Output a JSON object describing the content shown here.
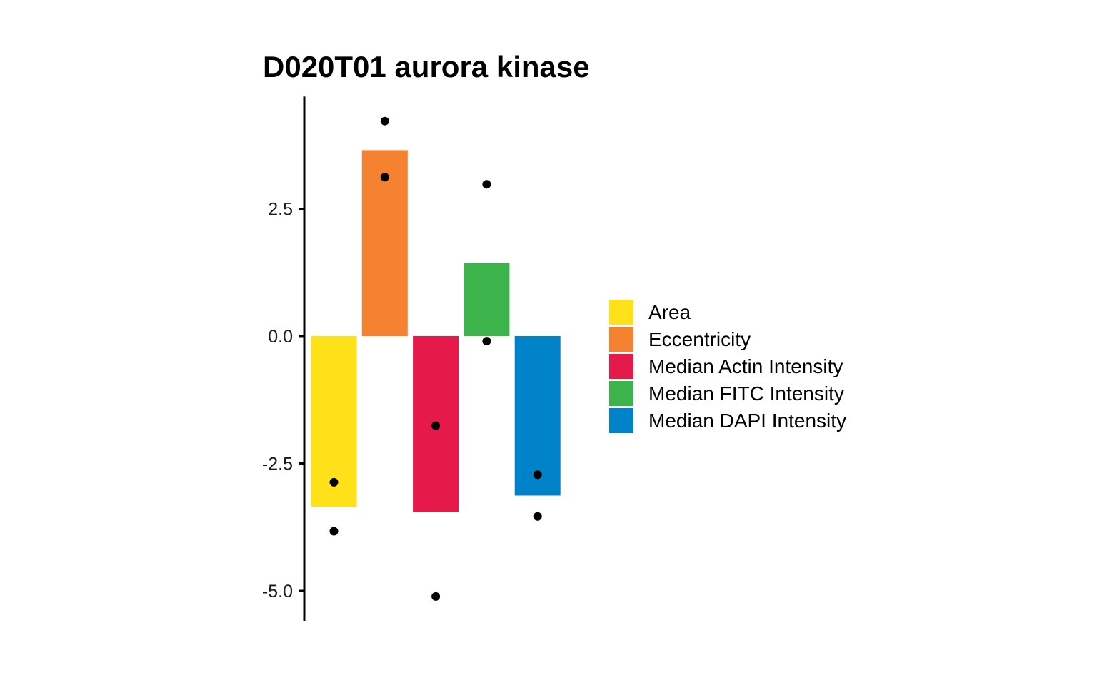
{
  "chart_data": {
    "type": "bar",
    "title": "D020T01 aurora kinase",
    "xlabel": "",
    "ylabel": "",
    "ylim": [
      -5.6,
      4.7
    ],
    "yticks": [
      2.5,
      0.0,
      -2.5,
      -5.0
    ],
    "ytick_labels": [
      "2.5",
      "0.0",
      "-2.5",
      "-5.0"
    ],
    "grid": false,
    "legend_position": "right",
    "categories": [
      "Area",
      "Eccentricity",
      "Median Actin Intensity",
      "Median FITC Intensity",
      "Median DAPI Intensity"
    ],
    "values": [
      -3.35,
      3.65,
      -3.45,
      1.43,
      -3.13
    ],
    "colors": [
      "#FFE119",
      "#F58231",
      "#E6194B",
      "#3CB44B",
      "#0082C8"
    ],
    "points": [
      {
        "category": "Area",
        "values": [
          -2.87,
          -3.83
        ]
      },
      {
        "category": "Eccentricity",
        "values": [
          4.22,
          3.12
        ]
      },
      {
        "category": "Median Actin Intensity",
        "values": [
          -1.76,
          -5.11
        ]
      },
      {
        "category": "Median FITC Intensity",
        "values": [
          2.98,
          -0.1
        ]
      },
      {
        "category": "Median DAPI Intensity",
        "values": [
          -2.72,
          -3.54
        ]
      }
    ],
    "legend": [
      {
        "label": "Area",
        "color": "#FFE119"
      },
      {
        "label": "Eccentricity",
        "color": "#F58231"
      },
      {
        "label": "Median Actin Intensity",
        "color": "#E6194B"
      },
      {
        "label": "Median FITC Intensity",
        "color": "#3CB44B"
      },
      {
        "label": "Median DAPI Intensity",
        "color": "#0082C8"
      }
    ]
  }
}
